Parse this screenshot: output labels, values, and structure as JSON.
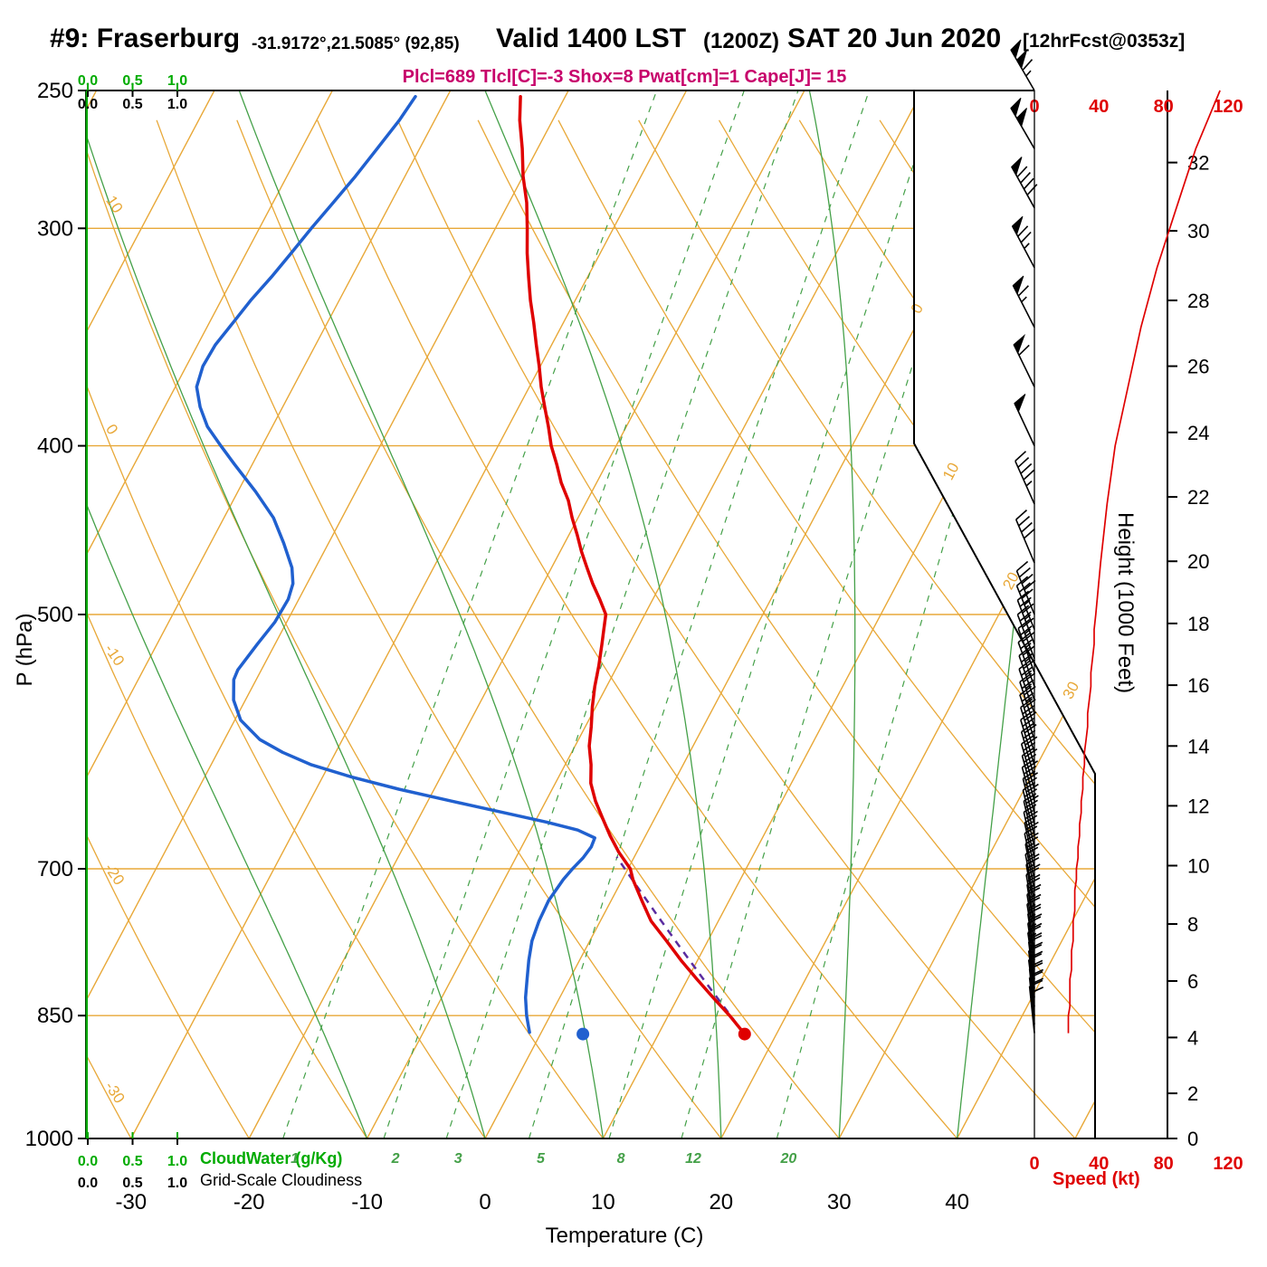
{
  "header": {
    "station": "#9: Fraserburg",
    "coords": "-31.9172°,21.5085° (92,85)",
    "valid_main": "Valid 1400 LST",
    "valid_zulu": "(1200Z)",
    "valid_date": "SAT 20 Jun 2020",
    "fcst": "[12hrFcst@0353z]",
    "indices": "Plcl=689 Tlcl[C]=-3 Shox=8 Pwat[cm]=1 Cape[J]= 15"
  },
  "axis_titles": {
    "pressure": "P (hPa)",
    "temperature": "Temperature (C)",
    "height": "Height (1000 Feet)",
    "speed": "Speed (kt)",
    "cloudwater": "CloudWater (g/Kg)",
    "cloudiness": "Grid-Scale Cloudiness"
  },
  "colors": {
    "orange": "#E8A838",
    "green_lines": "#44A048",
    "green_axis": "#00AB00",
    "red": "#DF0000",
    "blue": "#2060CF",
    "purple": "#5A2CA0",
    "magenta": "#C7006B",
    "black": "#000000"
  },
  "chart_data": {
    "type": "skewt",
    "pressure_axis": {
      "ticks": [
        250,
        300,
        400,
        500,
        700,
        850,
        1000
      ],
      "range": [
        250,
        1000
      ],
      "scale": "log"
    },
    "temp_axis": {
      "ticks": [
        -30,
        -20,
        -10,
        0,
        10,
        20,
        30,
        40
      ],
      "unit": "C"
    },
    "height_axis_kft": {
      "ticks": [
        [
          0,
          1013
        ],
        [
          2,
          942
        ],
        [
          4,
          875
        ],
        [
          6,
          812
        ],
        [
          8,
          753
        ],
        [
          10,
          697
        ],
        [
          12,
          644
        ],
        [
          14,
          595
        ],
        [
          16,
          549
        ],
        [
          18,
          506
        ],
        [
          20,
          466
        ],
        [
          22,
          428
        ],
        [
          24,
          393
        ],
        [
          26,
          360
        ],
        [
          28,
          330
        ],
        [
          30,
          301
        ],
        [
          32,
          275
        ]
      ]
    },
    "speed_axis": {
      "ticks": [
        0,
        40,
        80,
        120
      ],
      "unit": "kt",
      "max": 120
    },
    "cloud_axis": {
      "ticks": [
        "0.0",
        "0.5",
        "1.0"
      ]
    },
    "background": {
      "isobars": [
        300,
        400,
        500,
        700,
        850
      ],
      "isotherms": {
        "min": -100,
        "max": 50,
        "step": 10,
        "labels": [
          0,
          10,
          20,
          30
        ]
      },
      "dry_adiabats": {
        "min": -30,
        "max": 120,
        "step": 10,
        "labels": [
          10,
          0,
          -10,
          -20,
          -30
        ]
      },
      "moist_adiabats": [
        -10,
        0,
        10,
        20,
        30,
        40
      ],
      "mixing_ratio_gkg": [
        1,
        2,
        3,
        5,
        8,
        12,
        20
      ]
    },
    "temperature_profile": [
      [
        871,
        17.3
      ],
      [
        850,
        15.2
      ],
      [
        830,
        13.0
      ],
      [
        810,
        10.8
      ],
      [
        790,
        8.6
      ],
      [
        770,
        6.5
      ],
      [
        750,
        4.3
      ],
      [
        730,
        2.6
      ],
      [
        710,
        0.9
      ],
      [
        700,
        0.2
      ],
      [
        685,
        -1.5
      ],
      [
        670,
        -3.0
      ],
      [
        655,
        -4.4
      ],
      [
        640,
        -5.8
      ],
      [
        625,
        -7.0
      ],
      [
        610,
        -7.8
      ],
      [
        595,
        -8.8
      ],
      [
        580,
        -9.5
      ],
      [
        565,
        -10.3
      ],
      [
        550,
        -11.0
      ],
      [
        535,
        -11.6
      ],
      [
        520,
        -12.3
      ],
      [
        510,
        -12.8
      ],
      [
        500,
        -13.3
      ],
      [
        490,
        -14.5
      ],
      [
        480,
        -15.8
      ],
      [
        470,
        -17.0
      ],
      [
        460,
        -18.2
      ],
      [
        450,
        -19.3
      ],
      [
        440,
        -20.5
      ],
      [
        430,
        -21.6
      ],
      [
        420,
        -23.0
      ],
      [
        410,
        -24.2
      ],
      [
        400,
        -25.5
      ],
      [
        390,
        -26.6
      ],
      [
        380,
        -27.8
      ],
      [
        370,
        -29.0
      ],
      [
        360,
        -30.1
      ],
      [
        350,
        -31.3
      ],
      [
        340,
        -32.5
      ],
      [
        330,
        -33.8
      ],
      [
        320,
        -35.0
      ],
      [
        310,
        -36.2
      ],
      [
        300,
        -37.3
      ],
      [
        290,
        -38.5
      ],
      [
        280,
        -40.0
      ],
      [
        270,
        -41.3
      ],
      [
        260,
        -42.8
      ],
      [
        252,
        -43.8
      ]
    ],
    "dewpoint_profile": [
      [
        869,
        -1.0
      ],
      [
        850,
        -2.0
      ],
      [
        830,
        -2.9
      ],
      [
        810,
        -3.6
      ],
      [
        790,
        -4.3
      ],
      [
        770,
        -4.9
      ],
      [
        750,
        -5.2
      ],
      [
        730,
        -5.3
      ],
      [
        710,
        -5.0
      ],
      [
        700,
        -4.7
      ],
      [
        690,
        -4.3
      ],
      [
        680,
        -4.1
      ],
      [
        672,
        -4.2
      ],
      [
        665,
        -6.0
      ],
      [
        658,
        -9.0
      ],
      [
        650,
        -13.0
      ],
      [
        640,
        -18.0
      ],
      [
        630,
        -23.0
      ],
      [
        620,
        -27.5
      ],
      [
        610,
        -31.5
      ],
      [
        600,
        -34.5
      ],
      [
        590,
        -37.0
      ],
      [
        575,
        -39.5
      ],
      [
        560,
        -41.0
      ],
      [
        545,
        -41.9
      ],
      [
        538,
        -42.0
      ],
      [
        520,
        -41.5
      ],
      [
        505,
        -41.0
      ],
      [
        490,
        -40.9
      ],
      [
        480,
        -41.2
      ],
      [
        470,
        -42.0
      ],
      [
        455,
        -43.8
      ],
      [
        440,
        -45.8
      ],
      [
        425,
        -48.5
      ],
      [
        410,
        -51.5
      ],
      [
        400,
        -53.5
      ],
      [
        390,
        -55.5
      ],
      [
        380,
        -57.0
      ],
      [
        370,
        -58.2
      ],
      [
        360,
        -58.6
      ],
      [
        350,
        -58.5
      ],
      [
        340,
        -58.0
      ],
      [
        330,
        -57.5
      ],
      [
        320,
        -56.8
      ],
      [
        310,
        -56.2
      ],
      [
        300,
        -55.6
      ],
      [
        290,
        -54.9
      ],
      [
        280,
        -54.2
      ],
      [
        270,
        -53.6
      ],
      [
        260,
        -53.0
      ],
      [
        252,
        -52.7
      ]
    ],
    "surface_temp_point": [
      871,
      17.3
    ],
    "surface_dewpoint_point": [
      871,
      3.6
    ],
    "parcel": {
      "p_start": 871,
      "t_start": 17.3,
      "p_lcl": 689,
      "t_lcl": -3
    },
    "cloudwater_profile_gkg": 0.0,
    "indices": {
      "plcl": 689,
      "tlcl_c": -3,
      "shox": 8,
      "pwat_cm": 1,
      "cape_j": 15
    },
    "wind_barbs": [
      [
        250,
        115,
        330
      ],
      [
        270,
        100,
        330
      ],
      [
        292,
        88,
        331
      ],
      [
        316,
        76,
        332
      ],
      [
        342,
        66,
        333
      ],
      [
        370,
        58,
        334
      ],
      [
        400,
        50,
        335
      ],
      [
        432,
        45,
        336
      ],
      [
        467,
        41,
        337
      ],
      [
        500,
        38,
        338
      ],
      [
        510,
        37,
        338
      ],
      [
        520,
        37,
        339
      ],
      [
        530,
        36,
        339
      ],
      [
        540,
        35,
        340
      ],
      [
        550,
        35,
        340
      ],
      [
        560,
        34,
        341
      ],
      [
        570,
        33,
        341
      ],
      [
        580,
        33,
        342
      ],
      [
        590,
        32,
        342
      ],
      [
        600,
        31,
        343
      ],
      [
        610,
        31,
        343
      ],
      [
        620,
        30,
        344
      ],
      [
        630,
        30,
        344
      ],
      [
        640,
        29,
        345
      ],
      [
        650,
        29,
        345
      ],
      [
        660,
        28,
        346
      ],
      [
        670,
        28,
        346
      ],
      [
        680,
        27,
        347
      ],
      [
        690,
        27,
        347
      ],
      [
        700,
        26,
        348
      ],
      [
        710,
        26,
        348
      ],
      [
        720,
        25,
        349
      ],
      [
        730,
        25,
        349
      ],
      [
        740,
        25,
        350
      ],
      [
        750,
        24,
        350
      ],
      [
        760,
        24,
        351
      ],
      [
        770,
        24,
        351
      ],
      [
        780,
        23,
        351
      ],
      [
        790,
        23,
        352
      ],
      [
        800,
        23,
        352
      ],
      [
        810,
        22,
        352
      ],
      [
        820,
        22,
        353
      ],
      [
        830,
        22,
        353
      ],
      [
        840,
        22,
        353
      ],
      [
        850,
        21,
        354
      ],
      [
        860,
        21,
        354
      ],
      [
        870,
        21,
        354
      ]
    ]
  }
}
